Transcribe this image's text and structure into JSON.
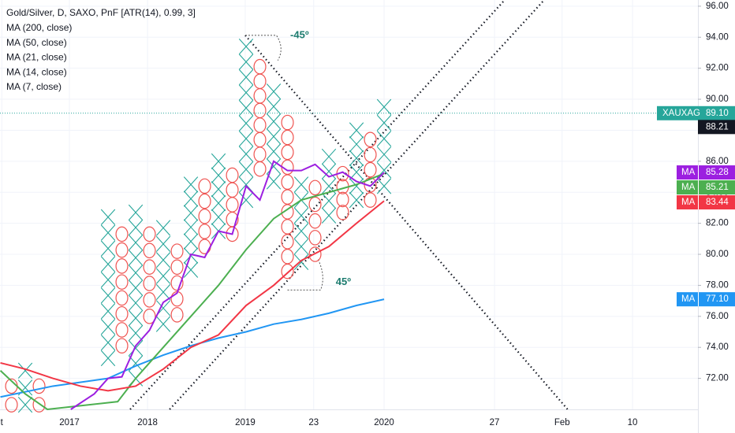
{
  "chart_data": {
    "type": "pnf",
    "title": "Gold/Silver, D, SAXO, PnF [ATR(14), 0.99, 3]",
    "legend": [
      "MA (200, close)",
      "MA (50, close)",
      "MA (21, close)",
      "MA (14, close)",
      "MA (7, close)"
    ],
    "box_size": 0.99,
    "x_color": "#26a69a",
    "o_color": "#ef5350",
    "xlim": [
      -7.83,
      42.74
    ],
    "ylim": [
      70,
      96.4
    ],
    "grid": true,
    "yticks": [
      {
        "value": 72,
        "label": "72.00"
      },
      {
        "value": 74,
        "label": "74.00"
      },
      {
        "value": 76,
        "label": "76.00"
      },
      {
        "value": 78,
        "label": "78.00"
      },
      {
        "value": 80,
        "label": "80.00"
      },
      {
        "value": 82,
        "label": "82.00"
      },
      {
        "value": 84,
        "label": "84.00"
      },
      {
        "value": 86,
        "label": "86.00"
      },
      {
        "value": 88,
        "label": "88.00"
      },
      {
        "value": 90,
        "label": "90.00"
      },
      {
        "value": 92,
        "label": "92.00"
      },
      {
        "value": 94,
        "label": "94.00"
      },
      {
        "value": 96,
        "label": "96.00"
      }
    ],
    "xticks": [
      {
        "value": -7.7,
        "label": "t"
      },
      {
        "value": -2.8,
        "label": "2017"
      },
      {
        "value": 2.86,
        "label": "2018"
      },
      {
        "value": 9.94,
        "label": "2019"
      },
      {
        "value": 14.9,
        "label": "23"
      },
      {
        "value": 20,
        "label": "2020"
      },
      {
        "value": 28,
        "label": "27"
      },
      {
        "value": 32.9,
        "label": "Feb"
      },
      {
        "value": 38,
        "label": "10"
      }
    ],
    "columns": [
      {
        "x": -7,
        "kind": "O",
        "low": 70.3,
        "high": 71.5
      },
      {
        "x": -6,
        "kind": "X",
        "low": 70.3,
        "high": 72.5
      },
      {
        "x": -5,
        "kind": "O",
        "low": 70.3,
        "high": 71.5
      },
      {
        "x": 0,
        "kind": "X",
        "low": 73.3,
        "high": 82.4
      },
      {
        "x": 1,
        "kind": "O",
        "low": 74.1,
        "high": 81.3
      },
      {
        "x": 2,
        "kind": "X",
        "low": 72.0,
        "high": 82.7
      },
      {
        "x": 3,
        "kind": "O",
        "low": 76.0,
        "high": 81.3
      },
      {
        "x": 4,
        "kind": "X",
        "low": 75.5,
        "high": 81.7
      },
      {
        "x": 5,
        "kind": "O",
        "low": 76.1,
        "high": 80.2
      },
      {
        "x": 6,
        "kind": "X",
        "low": 79.0,
        "high": 84.5
      },
      {
        "x": 7,
        "kind": "O",
        "low": 80.5,
        "high": 84.4
      },
      {
        "x": 8,
        "kind": "X",
        "low": 81.5,
        "high": 86.0
      },
      {
        "x": 9,
        "kind": "O",
        "low": 81.3,
        "high": 85.1
      },
      {
        "x": 10,
        "kind": "X",
        "low": 83.5,
        "high": 93.4
      },
      {
        "x": 11,
        "kind": "O",
        "low": 85.5,
        "high": 92.1
      },
      {
        "x": 12,
        "kind": "X",
        "low": 84.7,
        "high": 90.5
      },
      {
        "x": 13,
        "kind": "O",
        "low": 78.9,
        "high": 88.5
      },
      {
        "x": 14,
        "kind": "X",
        "low": 79.5,
        "high": 84.5
      },
      {
        "x": 15,
        "kind": "O",
        "low": 80.0,
        "high": 84.3
      },
      {
        "x": 16,
        "kind": "X",
        "low": 82.5,
        "high": 86.3
      },
      {
        "x": 17,
        "kind": "O",
        "low": 82.7,
        "high": 85.2
      },
      {
        "x": 18,
        "kind": "X",
        "low": 83.5,
        "high": 88.0
      },
      {
        "x": 19,
        "kind": "O",
        "low": 83.5,
        "high": 87.4
      },
      {
        "x": 20,
        "kind": "X",
        "low": 84.4,
        "high": 89.5
      }
    ],
    "series": [
      {
        "name": "MA (200, close)",
        "color": "#2196f3",
        "badge": "MA",
        "last": {
          "value": 77.1,
          "label": "77.10"
        },
        "x": [
          -7.8,
          -4,
          0,
          2,
          4,
          6,
          8,
          10,
          12,
          14,
          16,
          18,
          20
        ],
        "values": [
          70.8,
          71.5,
          72.0,
          72.8,
          73.5,
          74.1,
          74.6,
          75.0,
          75.5,
          75.8,
          76.2,
          76.7,
          77.1
        ]
      },
      {
        "name": "MA (50, close)",
        "color": "#4caf50",
        "badge": "MA",
        "last": {
          "value": 85.21,
          "label": "85.21"
        },
        "x": [
          -7.8,
          -6,
          -4.4,
          0.7,
          2,
          4,
          6,
          8,
          10,
          12,
          14,
          16,
          18,
          20
        ],
        "values": [
          72.5,
          71.0,
          70.0,
          70.5,
          72.0,
          74.0,
          76.0,
          78.0,
          80.3,
          82.3,
          83.5,
          84.0,
          84.5,
          85.21
        ]
      },
      {
        "name": "MA (21, close)",
        "color": "#f23645",
        "badge": "MA",
        "last": {
          "value": 83.44,
          "label": "83.44"
        },
        "x": [
          -7.8,
          -6,
          -4,
          -2,
          0,
          2,
          4,
          6,
          8,
          10,
          12,
          14,
          16,
          18,
          20
        ],
        "values": [
          73.0,
          72.6,
          72.0,
          71.5,
          71.2,
          71.5,
          72.6,
          74.0,
          74.8,
          76.7,
          78.0,
          79.6,
          80.5,
          82.0,
          83.44
        ]
      },
      {
        "name": "MA (7, close)",
        "color": "#9c1fe0",
        "badge": "MA",
        "last": {
          "value": 85.28,
          "label": "85.28"
        },
        "x": [
          -2.7,
          -1,
          0,
          1,
          2,
          3,
          4,
          5,
          6,
          7,
          8,
          9,
          10,
          11,
          12,
          13,
          14,
          15,
          16,
          17,
          18,
          19,
          20
        ],
        "values": [
          70.0,
          71.0,
          72.0,
          72.1,
          74.1,
          75.1,
          76.9,
          77.5,
          80.0,
          79.8,
          81.5,
          81.3,
          84.4,
          83.5,
          86.0,
          85.4,
          85.4,
          85.8,
          85.0,
          85.3,
          84.7,
          84.4,
          85.28
        ]
      }
    ],
    "price": {
      "name": "XAUXAG",
      "value": 89.1,
      "label": "89.10",
      "color": "#26a69a"
    },
    "marker": {
      "value": 88.21,
      "label": "88.21"
    },
    "trendlines": [
      {
        "x": [
          1.6,
          28.74
        ],
        "y": [
          70.0,
          96.4
        ]
      },
      {
        "x": [
          4.46,
          31.6
        ],
        "y": [
          70.0,
          96.4
        ]
      },
      {
        "x": [
          9.94,
          33.3
        ],
        "y": [
          94.12,
          70.0
        ]
      }
    ],
    "annotations": [
      {
        "text": "-45º",
        "x": 13.2,
        "y": 94.1
      },
      {
        "text": "45º",
        "x": 16.5,
        "y": 78.2
      }
    ]
  }
}
